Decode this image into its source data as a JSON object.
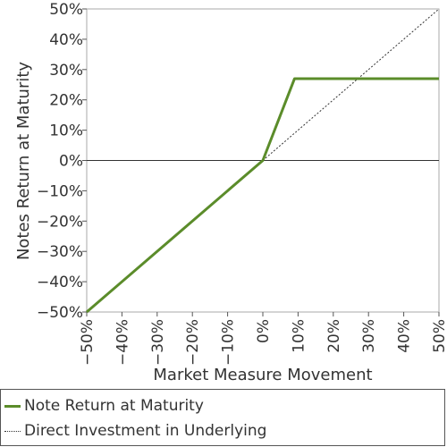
{
  "chart_data": {
    "type": "line",
    "xlabel": "Market Measure Movement",
    "ylabel": "Notes Return at Maturity",
    "xlim": [
      -50,
      50
    ],
    "ylim": [
      -50,
      50
    ],
    "x_ticks": [
      -50,
      -40,
      -30,
      -20,
      -10,
      0,
      10,
      20,
      30,
      40,
      50
    ],
    "y_ticks": [
      -50,
      -40,
      -30,
      -20,
      -10,
      0,
      10,
      20,
      30,
      40,
      50
    ],
    "x_tick_labels": [
      "−50%",
      "−40%",
      "−30%",
      "−20%",
      "−10%",
      "0%",
      "10%",
      "20%",
      "30%",
      "40%",
      "50%"
    ],
    "y_tick_labels": [
      "−50%",
      "−40%",
      "−30%",
      "−20%",
      "−10%",
      "0%",
      "10%",
      "20%",
      "30%",
      "40%",
      "50%"
    ],
    "grid": false,
    "legend_placement": "bottom",
    "series": [
      {
        "name": "Note Return at Maturity",
        "color": "#5b8c2a",
        "style": "solid",
        "x": [
          -50,
          0,
          9,
          50
        ],
        "y": [
          -50,
          0,
          27,
          27
        ]
      },
      {
        "name": "Direct Investment in Underlying",
        "color": "#333333",
        "style": "dotted",
        "x": [
          0,
          50
        ],
        "y": [
          0,
          50
        ]
      }
    ]
  }
}
